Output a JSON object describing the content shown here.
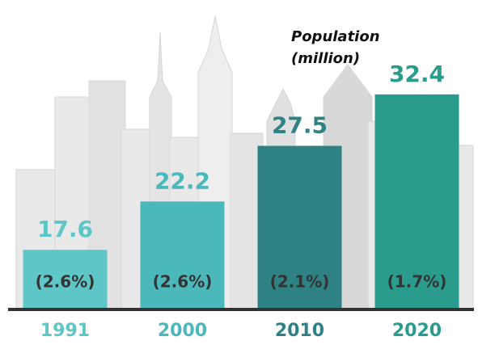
{
  "chart_data": {
    "type": "bar",
    "title": [
      "Population",
      "(million)"
    ],
    "categories": [
      "1991",
      "2000",
      "2010",
      "2020"
    ],
    "values": [
      17.6,
      22.2,
      27.5,
      32.4
    ],
    "growth_labels": [
      "(2.6%)",
      "(2.6%)",
      "(2.1%)",
      "(1.7%)"
    ],
    "colors": [
      "#5fc6c8",
      "#4bb8bb",
      "#2f8283",
      "#2a9c8e"
    ],
    "ylim": [
      12,
      34
    ]
  }
}
